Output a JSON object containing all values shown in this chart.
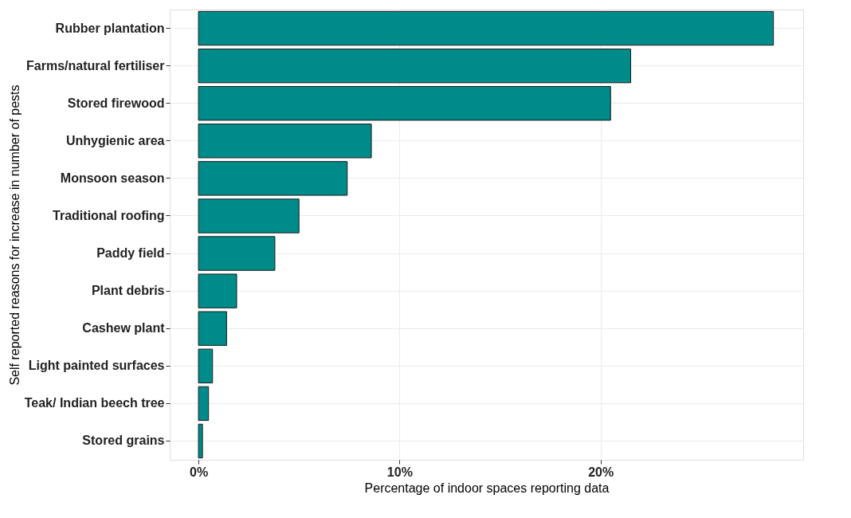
{
  "chart_data": {
    "type": "bar",
    "orientation": "horizontal",
    "xlabel": "Percentage of indoor spaces reporting data",
    "ylabel": "Self reported reasons for increase in number of pests",
    "categories": [
      "Rubber plantation",
      "Farms/natural fertiliser",
      "Stored firewood",
      "Unhygienic area",
      "Monsoon season",
      "Traditional roofing",
      "Paddy field",
      "Plant debris",
      "Cashew plant",
      "Light painted surfaces",
      "Teak/ Indian beech tree",
      "Stored grains"
    ],
    "values": [
      28.6,
      21.5,
      20.5,
      8.6,
      7.4,
      5.0,
      3.8,
      1.9,
      1.4,
      0.7,
      0.5,
      0.2
    ],
    "color": "#008b8b",
    "xlim": [
      -1.43,
      30.08
    ],
    "xticks": [
      {
        "value": 0,
        "label": "0%"
      },
      {
        "value": 10,
        "label": "10%"
      },
      {
        "value": 20,
        "label": "20%"
      }
    ],
    "grid": true
  }
}
